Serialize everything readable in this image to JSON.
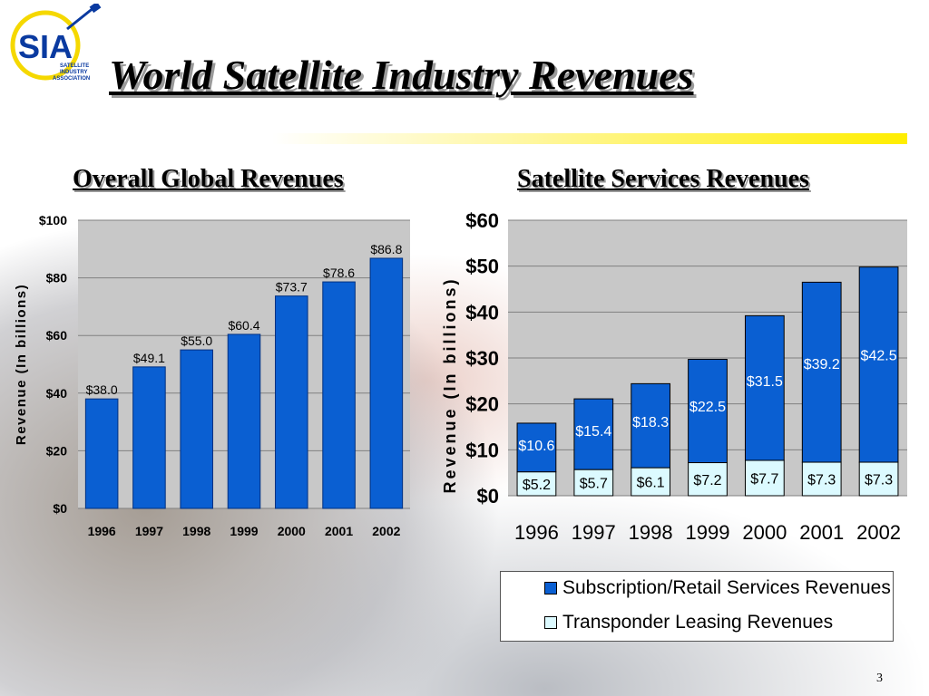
{
  "slide": {
    "title": "World Satellite Industry Revenues",
    "page_number": "3",
    "logo": {
      "text": "SIA",
      "subtext": "SATELLITE INDUSTRY ASSOCIATION"
    }
  },
  "colors": {
    "bar_blue": "#0a5fd2",
    "transponder": "#dcfaff",
    "plot_bg": "#c8c8c8",
    "title_bar": "#ffee00"
  },
  "chart_data": [
    {
      "type": "bar",
      "title": "Overall Global Revenues",
      "ylabel": "Revenue (In billions)",
      "categories": [
        "1996",
        "1997",
        "1998",
        "1999",
        "2000",
        "2001",
        "2002"
      ],
      "values": [
        38.0,
        49.1,
        55.0,
        60.4,
        73.7,
        78.6,
        86.8
      ],
      "data_labels": [
        "$38.0",
        "$49.1",
        "$55.0",
        "$60.4",
        "$73.7",
        "$78.6",
        "$86.8"
      ],
      "ylim": [
        0,
        100
      ],
      "yticks": [
        0,
        20,
        40,
        60,
        80,
        100
      ],
      "ytick_labels": [
        "$0",
        "$20",
        "$40",
        "$60",
        "$80",
        "$100"
      ],
      "grid": true
    },
    {
      "type": "bar",
      "stacked": true,
      "title": "Satellite Services Revenues",
      "ylabel": "Revenue (In billions)",
      "categories": [
        "1996",
        "1997",
        "1998",
        "1999",
        "2000",
        "2001",
        "2002"
      ],
      "series": [
        {
          "name": "Transponder Leasing Revenues",
          "values": [
            5.2,
            5.7,
            6.1,
            7.2,
            7.7,
            7.3,
            7.3
          ],
          "data_labels": [
            "$5.2",
            "$5.7",
            "$6.1",
            "$7.2",
            "$7.7",
            "$7.3",
            "$7.3"
          ]
        },
        {
          "name": "Subscription/Retail Services Revenues",
          "values": [
            10.6,
            15.4,
            18.3,
            22.5,
            31.5,
            39.2,
            42.5
          ],
          "data_labels": [
            "$10.6",
            "$15.4",
            "$18.3",
            "$22.5",
            "$31.5",
            "$39.2",
            "$42.5"
          ]
        }
      ],
      "ylim": [
        0,
        60
      ],
      "yticks": [
        0,
        10,
        20,
        30,
        40,
        50,
        60
      ],
      "ytick_labels": [
        "$0",
        "$10",
        "$20",
        "$30",
        "$40",
        "$50",
        "$60"
      ],
      "grid": true,
      "legend_position": "bottom"
    }
  ]
}
